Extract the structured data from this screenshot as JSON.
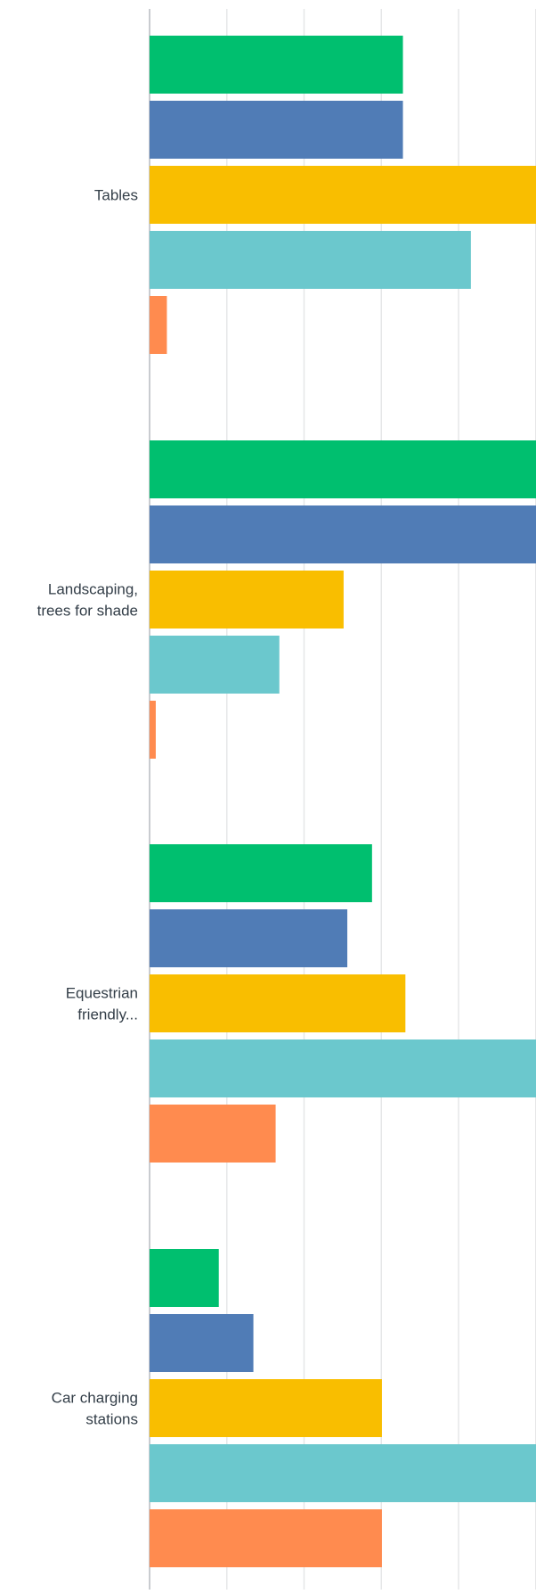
{
  "chart_data": {
    "type": "bar",
    "orientation": "horizontal",
    "categories": [
      [
        "Tables"
      ],
      [
        "Landscaping,",
        "trees for shade"
      ],
      [
        "Equestrian",
        "friendly..."
      ],
      [
        "Car charging",
        "stations"
      ]
    ],
    "series": [
      {
        "values": [
          0.205,
          0.415,
          0.18,
          0.056
        ]
      },
      {
        "values": [
          0.205,
          0.316,
          0.16,
          0.084
        ]
      },
      {
        "values": [
          0.32,
          0.157,
          0.207,
          0.188
        ]
      },
      {
        "values": [
          0.26,
          0.105,
          0.353,
          0.488
        ]
      },
      {
        "values": [
          0.014,
          0.005,
          0.102,
          0.188
        ]
      }
    ],
    "colors": [
      "#00bf6f",
      "#507cb6",
      "#f9be00",
      "#6bc8cd",
      "#ff8b4f"
    ],
    "xlim": [
      0,
      0.5
    ],
    "grid": true,
    "legend": "none"
  }
}
